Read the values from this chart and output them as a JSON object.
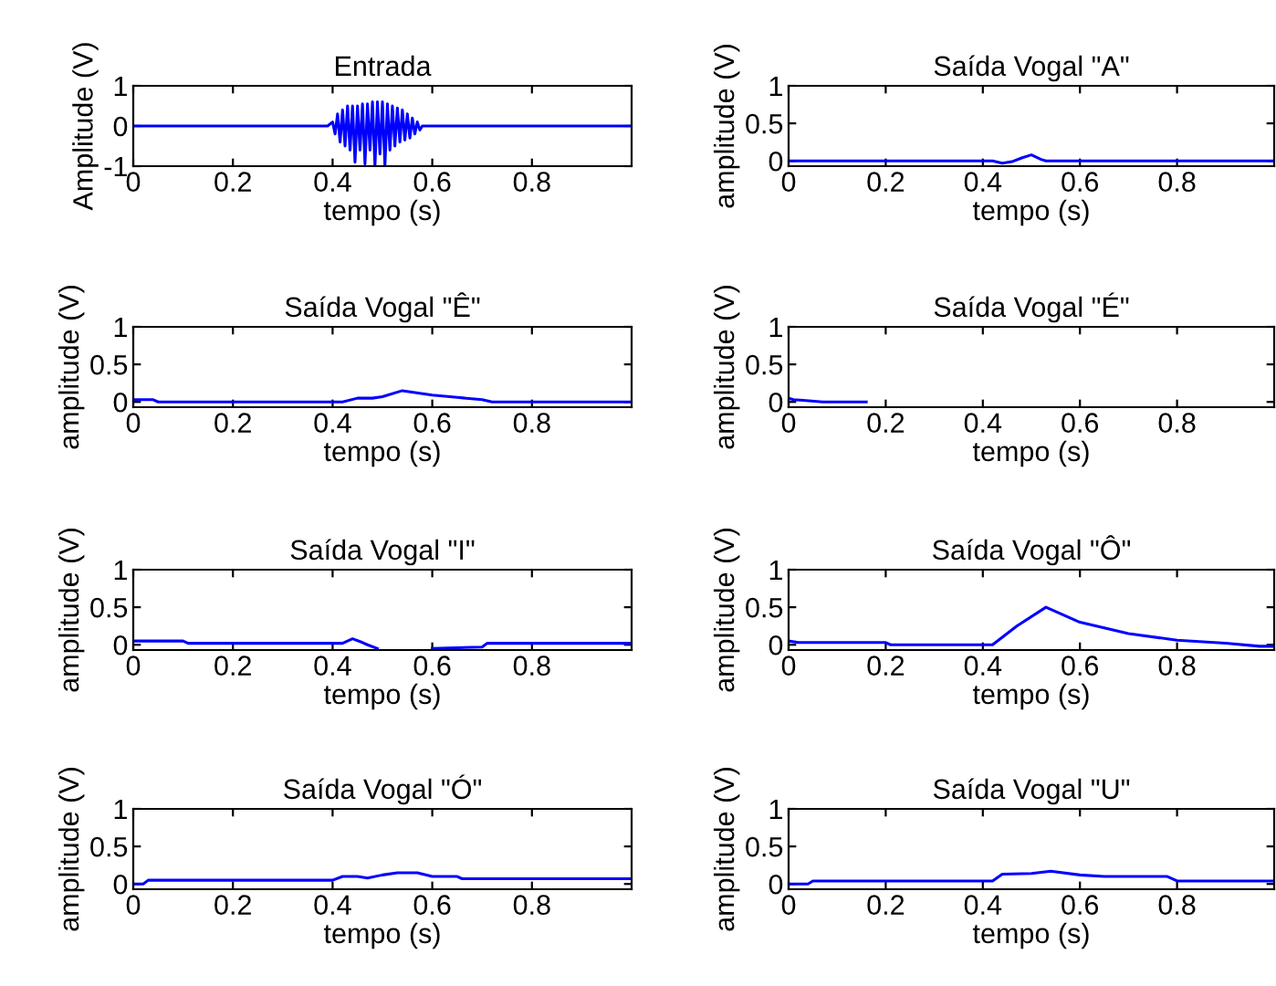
{
  "chart_data": [
    {
      "type": "line",
      "title": "Entrada",
      "xlabel": "tempo (s)",
      "ylabel": "Amplitude (V)",
      "xlim": [
        0,
        1
      ],
      "ylim": [
        -1,
        1
      ],
      "xticks": [
        0,
        0.2,
        0.4,
        0.6,
        0.8
      ],
      "yticks": [
        -1,
        0,
        1
      ],
      "x": [
        0,
        0.39,
        0.4,
        0.405,
        0.41,
        0.415,
        0.42,
        0.425,
        0.43,
        0.435,
        0.44,
        0.445,
        0.45,
        0.455,
        0.46,
        0.465,
        0.47,
        0.475,
        0.48,
        0.485,
        0.49,
        0.495,
        0.5,
        0.505,
        0.51,
        0.515,
        0.52,
        0.525,
        0.53,
        0.535,
        0.54,
        0.545,
        0.55,
        0.555,
        0.56,
        0.565,
        0.57,
        0.575,
        0.58,
        0.59,
        1
      ],
      "series": [
        {
          "color": "#0000ff",
          "values": [
            0,
            0,
            0.1,
            -0.2,
            0.3,
            -0.4,
            0.4,
            -0.5,
            0.5,
            -0.6,
            0.5,
            -0.9,
            0.5,
            -0.6,
            0.55,
            -0.95,
            0.55,
            -0.6,
            0.6,
            -1,
            0.6,
            -0.7,
            0.6,
            -1,
            0.55,
            -0.6,
            0.5,
            -0.5,
            0.45,
            -0.4,
            0.4,
            -0.35,
            0.3,
            -0.3,
            0.2,
            -0.2,
            0.1,
            -0.1,
            0,
            0,
            0
          ]
        }
      ]
    },
    {
      "type": "line",
      "title": "Saída Vogal \"A\"",
      "xlabel": "tempo (s)",
      "ylabel": "amplitude (V)",
      "xlim": [
        0,
        1
      ],
      "ylim": [
        -0.07,
        1
      ],
      "xticks": [
        0,
        0.2,
        0.4,
        0.6,
        0.8
      ],
      "yticks": [
        0,
        0.5,
        1
      ],
      "x": [
        0,
        0.42,
        0.44,
        0.46,
        0.48,
        0.5,
        0.52,
        0.53,
        1
      ],
      "series": [
        {
          "color": "#0000ff",
          "values": [
            0,
            0,
            -0.03,
            -0.01,
            0.04,
            0.08,
            0.02,
            0,
            0
          ]
        }
      ]
    },
    {
      "type": "line",
      "title": "Saída Vogal \"Ê\"",
      "xlabel": "tempo (s)",
      "ylabel": "amplitude (V)",
      "xlim": [
        0,
        1
      ],
      "ylim": [
        -0.07,
        1
      ],
      "xticks": [
        0,
        0.2,
        0.4,
        0.6,
        0.8
      ],
      "yticks": [
        0,
        0.5,
        1
      ],
      "x": [
        0,
        0.04,
        0.05,
        0.42,
        0.45,
        0.48,
        0.5,
        0.54,
        0.6,
        0.65,
        0.7,
        0.72,
        1
      ],
      "series": [
        {
          "color": "#0000ff",
          "values": [
            0.03,
            0.03,
            0,
            0,
            0.05,
            0.05,
            0.07,
            0.15,
            0.09,
            0.06,
            0.03,
            0,
            0
          ]
        }
      ]
    },
    {
      "type": "line",
      "title": "Saída Vogal \"É\"",
      "xlabel": "tempo (s)",
      "ylabel": "amplitude (V)",
      "xlim": [
        0,
        1
      ],
      "ylim": [
        -0.07,
        1
      ],
      "xticks": [
        0,
        0.2,
        0.4,
        0.6,
        0.8
      ],
      "yticks": [
        0,
        0.5,
        1
      ],
      "x": [
        0,
        0.01,
        0.03,
        0.07,
        0.16
      ],
      "series": [
        {
          "color": "#0000ff",
          "values": [
            0.05,
            0.03,
            0.02,
            0,
            0
          ]
        }
      ]
    },
    {
      "type": "line",
      "title": "Saída Vogal \"I\"",
      "xlabel": "tempo (s)",
      "ylabel": "amplitude (V)",
      "xlim": [
        0,
        1
      ],
      "ylim": [
        -0.07,
        1
      ],
      "xticks": [
        0,
        0.2,
        0.4,
        0.6,
        0.8
      ],
      "yticks": [
        0,
        0.5,
        1
      ],
      "x": [
        0,
        0.1,
        0.11,
        0.42,
        0.44,
        0.46,
        0.47,
        0.49,
        0.5,
        0.6,
        0.7,
        0.71,
        1
      ],
      "series": [
        {
          "color": "#0000ff",
          "values": [
            0.05,
            0.05,
            0.02,
            0.02,
            0.08,
            0.03,
            0,
            -0.05,
            null,
            -0.05,
            -0.03,
            0.02,
            0.02
          ]
        }
      ]
    },
    {
      "type": "line",
      "title": "Saída Vogal \"Ô\"",
      "xlabel": "tempo (s)",
      "ylabel": "amplitude (V)",
      "xlim": [
        0,
        1
      ],
      "ylim": [
        -0.07,
        1
      ],
      "xticks": [
        0,
        0.2,
        0.4,
        0.6,
        0.8
      ],
      "yticks": [
        0,
        0.5,
        1
      ],
      "x": [
        0,
        0.02,
        0.2,
        0.21,
        0.42,
        0.47,
        0.53,
        0.6,
        0.7,
        0.8,
        0.9,
        0.97,
        1
      ],
      "series": [
        {
          "color": "#0000ff",
          "values": [
            0.05,
            0.03,
            0.03,
            0,
            0,
            0.25,
            0.5,
            0.3,
            0.15,
            0.06,
            0.02,
            -0.02,
            -0.02
          ]
        }
      ]
    },
    {
      "type": "line",
      "title": "Saída Vogal \"Ó\"",
      "xlabel": "tempo (s)",
      "ylabel": "amplitude (V)",
      "xlim": [
        0,
        1
      ],
      "ylim": [
        -0.07,
        1
      ],
      "xticks": [
        0,
        0.2,
        0.4,
        0.6,
        0.8
      ],
      "yticks": [
        0,
        0.5,
        1
      ],
      "x": [
        0,
        0.02,
        0.03,
        0.4,
        0.42,
        0.45,
        0.47,
        0.5,
        0.53,
        0.57,
        0.6,
        0.65,
        0.66,
        1
      ],
      "series": [
        {
          "color": "#0000ff",
          "values": [
            0,
            0,
            0.05,
            0.05,
            0.1,
            0.1,
            0.08,
            0.12,
            0.15,
            0.15,
            0.1,
            0.1,
            0.07,
            0.07
          ]
        }
      ]
    },
    {
      "type": "line",
      "title": "Saída Vogal \"U\"",
      "xlabel": "tempo (s)",
      "ylabel": "amplitude (V)",
      "xlim": [
        0,
        1
      ],
      "ylim": [
        -0.07,
        1
      ],
      "xticks": [
        0,
        0.2,
        0.4,
        0.6,
        0.8
      ],
      "yticks": [
        0,
        0.5,
        1
      ],
      "x": [
        0,
        0.04,
        0.05,
        0.42,
        0.44,
        0.5,
        0.54,
        0.6,
        0.65,
        0.78,
        0.8,
        1
      ],
      "series": [
        {
          "color": "#0000ff",
          "values": [
            0,
            0,
            0.04,
            0.04,
            0.13,
            0.14,
            0.17,
            0.12,
            0.1,
            0.1,
            0.04,
            0.04
          ]
        }
      ]
    }
  ]
}
